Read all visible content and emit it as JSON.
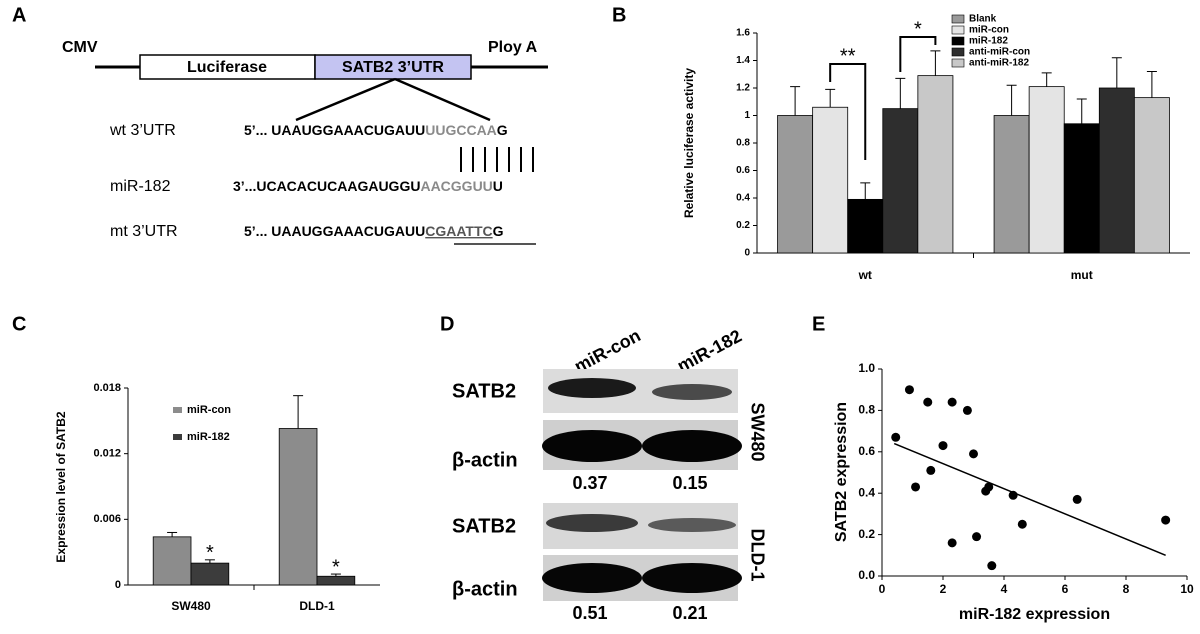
{
  "panel_labels": [
    "A",
    "B",
    "C",
    "D",
    "E"
  ],
  "diagram": {
    "promoter": "CMV",
    "gene": "Luciferase",
    "utr": "SATB2 3’UTR",
    "polya": "Ploy A",
    "rows": [
      {
        "label": "wt 3’UTR",
        "prefix": "5’... UAAUGGAAACUGAUU",
        "core": "UUGCCAA",
        "suffix": "G"
      },
      {
        "label": "miR-182",
        "prefix": "3’...UCACACUCAAGAUGGU",
        "core": "AACGGUU",
        "suffix": "U"
      },
      {
        "label": "mt 3’UTR",
        "prefix": "5’... UAAUGGAAACUGAUU",
        "core": "CGAATTC",
        "suffix": "G"
      }
    ]
  },
  "blot": {
    "columns": [
      "miR-con",
      "miR-182"
    ],
    "groups": [
      {
        "cell_line": "SW480",
        "rows": [
          "SATB2",
          "β-actin"
        ],
        "ratios": [
          0.37,
          0.15
        ]
      },
      {
        "cell_line": "DLD-1",
        "rows": [
          "SATB2",
          "β-actin"
        ],
        "ratios": [
          0.51,
          0.21
        ]
      }
    ]
  },
  "chart_data": [
    {
      "type": "bar",
      "ylabel": "Relative luciferase activity",
      "categories": [
        "wt",
        "mut"
      ],
      "ylim": [
        0,
        1.6
      ],
      "yticks": [
        0,
        0.2,
        0.4,
        0.6,
        0.8,
        1,
        1.2,
        1.4,
        1.6
      ],
      "legend": "upper right",
      "series": [
        {
          "name": "Blank",
          "color": "#9a9a9a",
          "values": [
            1.0,
            1.0
          ],
          "errors": [
            0.21,
            0.22
          ]
        },
        {
          "name": "miR-con",
          "color": "#e4e4e4",
          "values": [
            1.06,
            1.21
          ],
          "errors": [
            0.13,
            0.1
          ]
        },
        {
          "name": "miR-182",
          "color": "#000000",
          "values": [
            0.39,
            0.94
          ],
          "errors": [
            0.12,
            0.18
          ]
        },
        {
          "name": "anti-miR-con",
          "color": "#2e2e2e",
          "values": [
            1.05,
            1.2
          ],
          "errors": [
            0.22,
            0.22
          ]
        },
        {
          "name": "anti-miR-182",
          "color": "#c8c8c8",
          "values": [
            1.29,
            1.13
          ],
          "errors": [
            0.18,
            0.19
          ]
        }
      ],
      "annotations": [
        "**",
        "*"
      ]
    },
    {
      "type": "bar",
      "ylabel": "Expression level of SATB2",
      "categories": [
        "SW480",
        "DLD-1"
      ],
      "ylim": [
        0,
        0.018
      ],
      "yticks": [
        0,
        0.006,
        0.012,
        0.018
      ],
      "legend": "upper left",
      "series": [
        {
          "name": "miR-con",
          "color": "#8c8c8c",
          "values": [
            0.0044,
            0.0143
          ],
          "errors": [
            0.0004,
            0.003
          ]
        },
        {
          "name": "miR-182",
          "color": "#3c3c3c",
          "values": [
            0.002,
            0.0008
          ],
          "errors": [
            0.0003,
            0.0002
          ]
        }
      ],
      "annotations": [
        "*",
        "*"
      ]
    },
    {
      "type": "scatter",
      "xlabel": "miR-182 expression",
      "ylabel": "SATB2 expression",
      "xlim": [
        0,
        10
      ],
      "xticks": [
        0,
        2,
        4,
        6,
        8,
        10
      ],
      "ylim": [
        0,
        1
      ],
      "yticks": [
        {
          "value": 0,
          "label": "0.0"
        },
        0.2,
        0.4,
        0.6,
        0.8,
        {
          "value": 1,
          "label": "1.0"
        }
      ],
      "color": "#000000",
      "x": [
        0.45,
        0.9,
        1.1,
        1.5,
        1.6,
        2.0,
        2.3,
        2.3,
        2.8,
        3.0,
        3.1,
        3.4,
        3.5,
        3.6,
        4.3,
        4.6,
        6.4,
        9.3
      ],
      "y": [
        0.67,
        0.9,
        0.43,
        0.84,
        0.51,
        0.63,
        0.84,
        0.16,
        0.8,
        0.59,
        0.19,
        0.41,
        0.43,
        0.05,
        0.39,
        0.25,
        0.37,
        0.27
      ],
      "trendline": {
        "x": [
          0.4,
          9.3
        ],
        "y": [
          0.64,
          0.1
        ]
      }
    }
  ]
}
